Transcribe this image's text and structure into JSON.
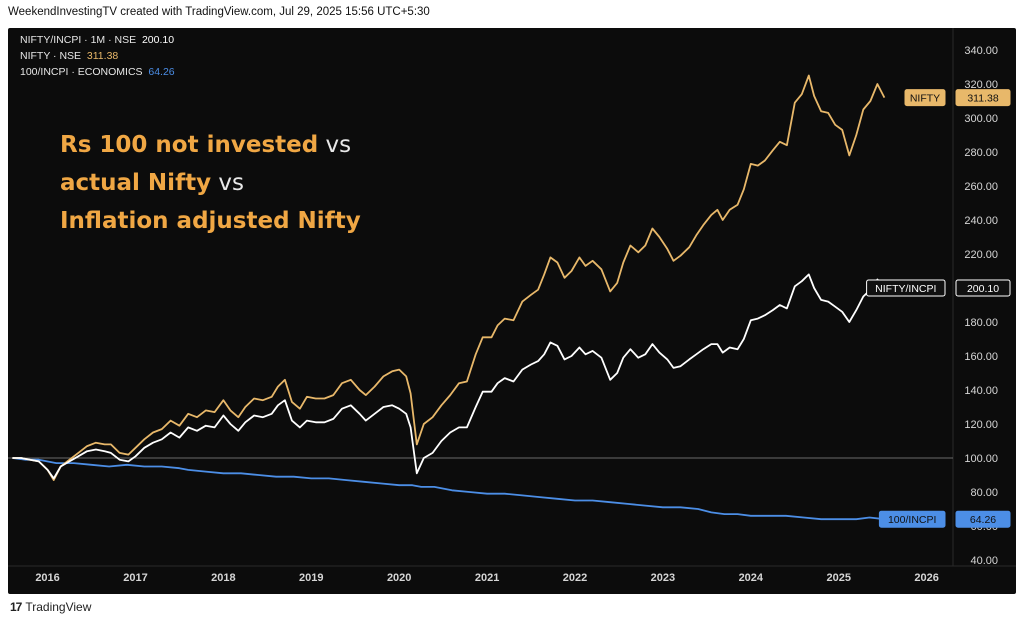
{
  "header": {
    "text": "WeekendInvestingTV created with TradingView.com, Jul 29, 2025 15:56 UTC+5:30"
  },
  "footer": {
    "logo": "17",
    "text": "TradingView"
  },
  "legend": [
    {
      "label": "NIFTY/INCPI · 1M · NSE",
      "value": "200.10",
      "color": "#ffffff"
    },
    {
      "label": "NIFTY · NSE",
      "value": "311.38",
      "color": "#e8b86a"
    },
    {
      "label": "100/INCPI · ECONOMICS",
      "value": "64.26",
      "color": "#4c8ee6"
    }
  ],
  "annotation": {
    "line1_bold": "Rs 100 not invested",
    "line1_tail": "vs",
    "line2_bold": "actual Nifty",
    "line2_tail": "vs",
    "line3_bold": "Inflation adjusted Nifty"
  },
  "chart_data": {
    "type": "line",
    "x_ticks": [
      "2016",
      "2017",
      "2018",
      "2019",
      "2020",
      "2021",
      "2022",
      "2023",
      "2024",
      "2025",
      "2026"
    ],
    "y_ticks": [
      "40.00",
      "60.00",
      "80.00",
      "100.00",
      "120.00",
      "140.00",
      "160.00",
      "180.00",
      "200.00",
      "220.00",
      "240.00",
      "260.00",
      "280.00",
      "300.00",
      "320.00",
      "340.00"
    ],
    "ylim": [
      40,
      340
    ],
    "xlim": [
      2015.55,
      2026.3
    ],
    "reference_line": 100,
    "series": [
      {
        "name": "NIFTY",
        "color": "#e8b86a",
        "price_label": "311.38",
        "points": [
          [
            2015.6,
            100
          ],
          [
            2015.7,
            100
          ],
          [
            2015.8,
            99
          ],
          [
            2015.9,
            98
          ],
          [
            2016.0,
            93
          ],
          [
            2016.07,
            87
          ],
          [
            2016.15,
            95
          ],
          [
            2016.25,
            99
          ],
          [
            2016.35,
            103
          ],
          [
            2016.45,
            107
          ],
          [
            2016.55,
            109
          ],
          [
            2016.65,
            108
          ],
          [
            2016.72,
            108
          ],
          [
            2016.82,
            103
          ],
          [
            2016.92,
            102
          ],
          [
            2017.0,
            106
          ],
          [
            2017.1,
            111
          ],
          [
            2017.2,
            115
          ],
          [
            2017.3,
            117
          ],
          [
            2017.4,
            122
          ],
          [
            2017.5,
            119
          ],
          [
            2017.6,
            126
          ],
          [
            2017.7,
            124
          ],
          [
            2017.8,
            128
          ],
          [
            2017.9,
            127
          ],
          [
            2018.0,
            134
          ],
          [
            2018.08,
            128
          ],
          [
            2018.17,
            124
          ],
          [
            2018.25,
            130
          ],
          [
            2018.35,
            135
          ],
          [
            2018.45,
            134
          ],
          [
            2018.55,
            136
          ],
          [
            2018.62,
            142
          ],
          [
            2018.7,
            146
          ],
          [
            2018.78,
            133
          ],
          [
            2018.87,
            129
          ],
          [
            2018.95,
            136
          ],
          [
            2019.05,
            135
          ],
          [
            2019.15,
            135
          ],
          [
            2019.25,
            137
          ],
          [
            2019.35,
            144
          ],
          [
            2019.45,
            146
          ],
          [
            2019.55,
            140
          ],
          [
            2019.62,
            137
          ],
          [
            2019.72,
            142
          ],
          [
            2019.82,
            148
          ],
          [
            2019.92,
            151
          ],
          [
            2020.0,
            152
          ],
          [
            2020.08,
            148
          ],
          [
            2020.13,
            138
          ],
          [
            2020.2,
            108
          ],
          [
            2020.28,
            120
          ],
          [
            2020.38,
            124
          ],
          [
            2020.48,
            131
          ],
          [
            2020.58,
            137
          ],
          [
            2020.68,
            144
          ],
          [
            2020.77,
            145
          ],
          [
            2020.87,
            161
          ],
          [
            2020.95,
            171
          ],
          [
            2021.05,
            171
          ],
          [
            2021.12,
            178
          ],
          [
            2021.2,
            182
          ],
          [
            2021.3,
            181
          ],
          [
            2021.4,
            192
          ],
          [
            2021.5,
            196
          ],
          [
            2021.58,
            199
          ],
          [
            2021.65,
            208
          ],
          [
            2021.72,
            218
          ],
          [
            2021.8,
            215
          ],
          [
            2021.88,
            206
          ],
          [
            2021.96,
            210
          ],
          [
            2022.05,
            218
          ],
          [
            2022.12,
            213
          ],
          [
            2022.2,
            216
          ],
          [
            2022.3,
            211
          ],
          [
            2022.4,
            198
          ],
          [
            2022.48,
            203
          ],
          [
            2022.55,
            215
          ],
          [
            2022.63,
            225
          ],
          [
            2022.72,
            221
          ],
          [
            2022.8,
            225
          ],
          [
            2022.88,
            235
          ],
          [
            2022.96,
            230
          ],
          [
            2023.05,
            223
          ],
          [
            2023.12,
            216
          ],
          [
            2023.2,
            219
          ],
          [
            2023.3,
            224
          ],
          [
            2023.38,
            231
          ],
          [
            2023.46,
            237
          ],
          [
            2023.55,
            243
          ],
          [
            2023.62,
            246
          ],
          [
            2023.68,
            240
          ],
          [
            2023.76,
            246
          ],
          [
            2023.85,
            249
          ],
          [
            2023.92,
            258
          ],
          [
            2024.0,
            273
          ],
          [
            2024.08,
            272
          ],
          [
            2024.16,
            275
          ],
          [
            2024.25,
            281
          ],
          [
            2024.33,
            286
          ],
          [
            2024.41,
            284
          ],
          [
            2024.5,
            309
          ],
          [
            2024.58,
            314
          ],
          [
            2024.66,
            325
          ],
          [
            2024.72,
            313
          ],
          [
            2024.8,
            304
          ],
          [
            2024.88,
            303
          ],
          [
            2024.96,
            296
          ],
          [
            2025.04,
            293
          ],
          [
            2025.12,
            278
          ],
          [
            2025.2,
            290
          ],
          [
            2025.28,
            305
          ],
          [
            2025.36,
            310
          ],
          [
            2025.44,
            320
          ],
          [
            2025.52,
            312
          ]
        ]
      },
      {
        "name": "NIFTY/INCPI",
        "color": "#ffffff",
        "price_label": "200.10",
        "points": [
          [
            2015.6,
            100
          ],
          [
            2015.7,
            100
          ],
          [
            2015.8,
            99
          ],
          [
            2015.9,
            98
          ],
          [
            2016.0,
            93
          ],
          [
            2016.07,
            88
          ],
          [
            2016.15,
            95
          ],
          [
            2016.25,
            98
          ],
          [
            2016.35,
            101
          ],
          [
            2016.45,
            104
          ],
          [
            2016.55,
            105
          ],
          [
            2016.65,
            104
          ],
          [
            2016.72,
            103
          ],
          [
            2016.82,
            99
          ],
          [
            2016.92,
            98
          ],
          [
            2017.0,
            101
          ],
          [
            2017.1,
            106
          ],
          [
            2017.2,
            109
          ],
          [
            2017.3,
            111
          ],
          [
            2017.4,
            115
          ],
          [
            2017.5,
            112
          ],
          [
            2017.6,
            118
          ],
          [
            2017.7,
            116
          ],
          [
            2017.8,
            119
          ],
          [
            2017.9,
            118
          ],
          [
            2018.0,
            125
          ],
          [
            2018.08,
            120
          ],
          [
            2018.17,
            116
          ],
          [
            2018.25,
            121
          ],
          [
            2018.35,
            125
          ],
          [
            2018.45,
            124
          ],
          [
            2018.55,
            126
          ],
          [
            2018.62,
            131
          ],
          [
            2018.7,
            134
          ],
          [
            2018.78,
            122
          ],
          [
            2018.87,
            118
          ],
          [
            2018.95,
            122
          ],
          [
            2019.05,
            121
          ],
          [
            2019.15,
            121
          ],
          [
            2019.25,
            123
          ],
          [
            2019.35,
            129
          ],
          [
            2019.45,
            131
          ],
          [
            2019.55,
            126
          ],
          [
            2019.62,
            122
          ],
          [
            2019.72,
            126
          ],
          [
            2019.82,
            130
          ],
          [
            2019.92,
            131
          ],
          [
            2020.0,
            129
          ],
          [
            2020.08,
            126
          ],
          [
            2020.13,
            118
          ],
          [
            2020.2,
            91
          ],
          [
            2020.28,
            100
          ],
          [
            2020.38,
            103
          ],
          [
            2020.48,
            110
          ],
          [
            2020.58,
            115
          ],
          [
            2020.68,
            118
          ],
          [
            2020.77,
            118
          ],
          [
            2020.87,
            130
          ],
          [
            2020.95,
            139
          ],
          [
            2021.05,
            139
          ],
          [
            2021.12,
            144
          ],
          [
            2021.2,
            147
          ],
          [
            2021.3,
            145
          ],
          [
            2021.4,
            152
          ],
          [
            2021.5,
            155
          ],
          [
            2021.58,
            157
          ],
          [
            2021.65,
            161
          ],
          [
            2021.72,
            168
          ],
          [
            2021.8,
            166
          ],
          [
            2021.88,
            158
          ],
          [
            2021.96,
            160
          ],
          [
            2022.05,
            165
          ],
          [
            2022.12,
            161
          ],
          [
            2022.2,
            163
          ],
          [
            2022.3,
            159
          ],
          [
            2022.4,
            146
          ],
          [
            2022.48,
            150
          ],
          [
            2022.55,
            159
          ],
          [
            2022.63,
            164
          ],
          [
            2022.72,
            159
          ],
          [
            2022.8,
            161
          ],
          [
            2022.88,
            167
          ],
          [
            2022.96,
            162
          ],
          [
            2023.05,
            158
          ],
          [
            2023.12,
            153
          ],
          [
            2023.2,
            154
          ],
          [
            2023.3,
            158
          ],
          [
            2023.38,
            161
          ],
          [
            2023.46,
            164
          ],
          [
            2023.55,
            167
          ],
          [
            2023.62,
            167
          ],
          [
            2023.68,
            162
          ],
          [
            2023.76,
            165
          ],
          [
            2023.85,
            164
          ],
          [
            2023.92,
            170
          ],
          [
            2024.0,
            181
          ],
          [
            2024.08,
            182
          ],
          [
            2024.16,
            184
          ],
          [
            2024.25,
            187
          ],
          [
            2024.33,
            190
          ],
          [
            2024.41,
            188
          ],
          [
            2024.5,
            201
          ],
          [
            2024.58,
            204
          ],
          [
            2024.66,
            208
          ],
          [
            2024.72,
            200
          ],
          [
            2024.8,
            193
          ],
          [
            2024.88,
            192
          ],
          [
            2024.96,
            189
          ],
          [
            2025.04,
            186
          ],
          [
            2025.12,
            180
          ],
          [
            2025.2,
            187
          ],
          [
            2025.28,
            195
          ],
          [
            2025.36,
            199
          ],
          [
            2025.44,
            205
          ],
          [
            2025.52,
            200
          ]
        ]
      },
      {
        "name": "100/INCPI",
        "color": "#4c8ee6",
        "price_label": "64.26",
        "points": [
          [
            2015.6,
            100
          ],
          [
            2015.75,
            99
          ],
          [
            2015.9,
            99
          ],
          [
            2016.1,
            97
          ],
          [
            2016.3,
            97
          ],
          [
            2016.5,
            96
          ],
          [
            2016.7,
            95
          ],
          [
            2016.9,
            96
          ],
          [
            2017.1,
            95
          ],
          [
            2017.3,
            95
          ],
          [
            2017.5,
            94
          ],
          [
            2017.6,
            93
          ],
          [
            2017.8,
            92
          ],
          [
            2018.0,
            91
          ],
          [
            2018.2,
            91
          ],
          [
            2018.4,
            90
          ],
          [
            2018.6,
            89
          ],
          [
            2018.8,
            89
          ],
          [
            2019.0,
            88
          ],
          [
            2019.2,
            88
          ],
          [
            2019.4,
            87
          ],
          [
            2019.6,
            86
          ],
          [
            2019.8,
            85
          ],
          [
            2020.0,
            84
          ],
          [
            2020.15,
            84
          ],
          [
            2020.25,
            83
          ],
          [
            2020.4,
            83
          ],
          [
            2020.6,
            81
          ],
          [
            2020.8,
            80
          ],
          [
            2021.0,
            79
          ],
          [
            2021.2,
            79
          ],
          [
            2021.4,
            78
          ],
          [
            2021.6,
            77
          ],
          [
            2021.8,
            76
          ],
          [
            2022.0,
            75
          ],
          [
            2022.2,
            75
          ],
          [
            2022.4,
            74
          ],
          [
            2022.6,
            73
          ],
          [
            2022.8,
            72
          ],
          [
            2023.0,
            71
          ],
          [
            2023.2,
            71
          ],
          [
            2023.4,
            70
          ],
          [
            2023.55,
            68
          ],
          [
            2023.7,
            67
          ],
          [
            2023.85,
            67
          ],
          [
            2024.0,
            66
          ],
          [
            2024.2,
            66
          ],
          [
            2024.4,
            66
          ],
          [
            2024.6,
            65
          ],
          [
            2024.8,
            64
          ],
          [
            2025.0,
            64
          ],
          [
            2025.2,
            64
          ],
          [
            2025.35,
            65
          ],
          [
            2025.52,
            64
          ]
        ]
      }
    ]
  }
}
